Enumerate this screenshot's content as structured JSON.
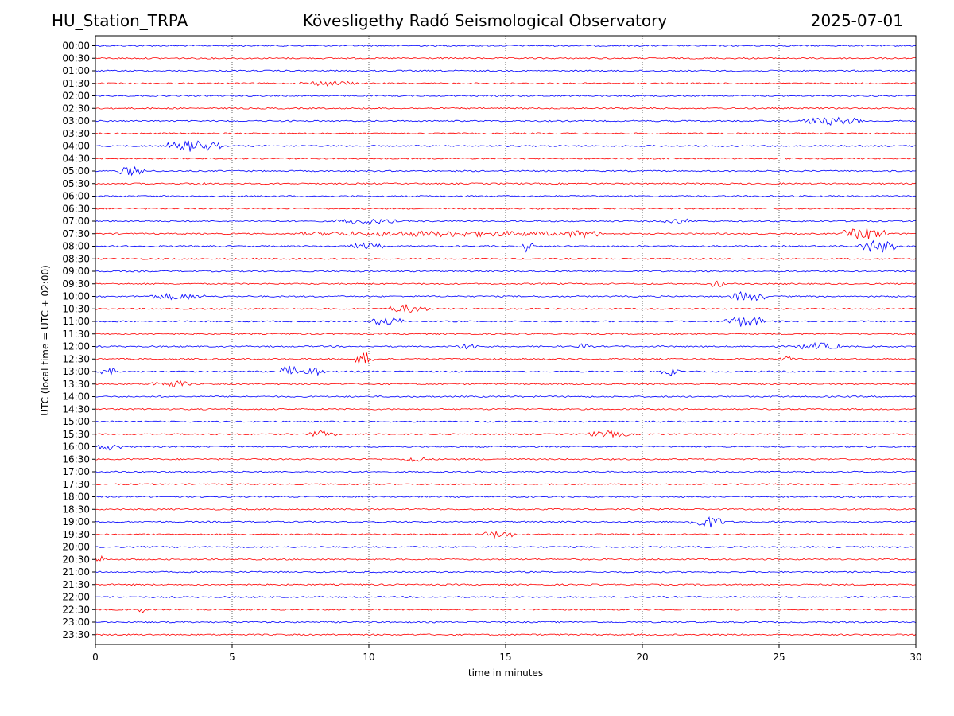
{
  "header": {
    "station": "HU_Station_TRPA",
    "observatory": "Kövesligethy Radó Seismological Observatory",
    "date": "2025-07-01"
  },
  "chart_data": {
    "type": "line",
    "title": "Kövesligethy Radó Seismological Observatory",
    "xlabel": "time in minutes",
    "ylabel": "UTC (local time = UTC + 02:00)",
    "xlim": [
      0,
      30
    ],
    "x_ticks": [
      0,
      5,
      10,
      15,
      20,
      25,
      30
    ],
    "grid": "vertical dotted at x ticks",
    "colors": {
      "even_rows": "#0000ff",
      "odd_rows": "#ff0000"
    },
    "rows": [
      "00:00",
      "00:30",
      "01:00",
      "01:30",
      "02:00",
      "02:30",
      "03:00",
      "03:30",
      "04:00",
      "04:30",
      "05:00",
      "05:30",
      "06:00",
      "06:30",
      "07:00",
      "07:30",
      "08:00",
      "08:30",
      "09:00",
      "09:30",
      "10:00",
      "10:30",
      "11:00",
      "11:30",
      "12:00",
      "12:30",
      "13:00",
      "13:30",
      "14:00",
      "14:30",
      "15:00",
      "15:30",
      "16:00",
      "16:30",
      "17:00",
      "17:30",
      "18:00",
      "18:30",
      "19:00",
      "19:30",
      "20:00",
      "20:30",
      "21:00",
      "21:30",
      "22:00",
      "22:30",
      "23:00",
      "23:30"
    ],
    "events": [
      {
        "row": "01:30",
        "start": 7.5,
        "end": 9.5,
        "level": 0.3
      },
      {
        "row": "03:00",
        "start": 25.7,
        "end": 28.2,
        "level": 0.5
      },
      {
        "row": "04:00",
        "start": 2.6,
        "end": 4.6,
        "level": 0.8
      },
      {
        "row": "05:00",
        "start": 0.8,
        "end": 1.8,
        "level": 0.6
      },
      {
        "row": "05:30",
        "start": 3.6,
        "end": 4.2,
        "level": 0.2
      },
      {
        "row": "07:00",
        "start": 8.8,
        "end": 11.0,
        "level": 0.35
      },
      {
        "row": "07:00",
        "start": 20.8,
        "end": 21.8,
        "level": 0.35
      },
      {
        "row": "07:30",
        "start": 7.5,
        "end": 18.5,
        "level": 0.35
      },
      {
        "row": "07:30",
        "start": 17.0,
        "end": 18.5,
        "level": 0.5
      },
      {
        "row": "07:30",
        "start": 27.3,
        "end": 29.0,
        "level": 0.8
      },
      {
        "row": "08:00",
        "start": 9.3,
        "end": 10.5,
        "level": 0.4
      },
      {
        "row": "08:00",
        "start": 15.6,
        "end": 16.0,
        "level": 0.9
      },
      {
        "row": "08:00",
        "start": 27.9,
        "end": 29.3,
        "level": 0.9
      },
      {
        "row": "09:30",
        "start": 22.5,
        "end": 23.0,
        "level": 0.6
      },
      {
        "row": "10:00",
        "start": 2.0,
        "end": 4.0,
        "level": 0.4
      },
      {
        "row": "10:00",
        "start": 23.2,
        "end": 24.5,
        "level": 0.7
      },
      {
        "row": "10:30",
        "start": 10.6,
        "end": 12.2,
        "level": 0.5
      },
      {
        "row": "11:00",
        "start": 10.0,
        "end": 11.3,
        "level": 0.55
      },
      {
        "row": "11:00",
        "start": 23.0,
        "end": 24.5,
        "level": 0.75
      },
      {
        "row": "12:00",
        "start": 13.2,
        "end": 14.0,
        "level": 0.4
      },
      {
        "row": "12:00",
        "start": 17.6,
        "end": 18.0,
        "level": 0.4
      },
      {
        "row": "12:00",
        "start": 25.6,
        "end": 27.3,
        "level": 0.45
      },
      {
        "row": "12:30",
        "start": 9.5,
        "end": 10.2,
        "level": 0.9
      },
      {
        "row": "12:30",
        "start": 25.0,
        "end": 25.6,
        "level": 0.4
      },
      {
        "row": "13:00",
        "start": 0.2,
        "end": 0.8,
        "level": 0.5
      },
      {
        "row": "13:00",
        "start": 6.8,
        "end": 7.4,
        "level": 0.9
      },
      {
        "row": "13:00",
        "start": 7.6,
        "end": 8.5,
        "level": 0.45
      },
      {
        "row": "13:00",
        "start": 20.7,
        "end": 21.4,
        "level": 0.45
      },
      {
        "row": "13:30",
        "start": 2.0,
        "end": 3.5,
        "level": 0.45
      },
      {
        "row": "15:30",
        "start": 7.8,
        "end": 8.8,
        "level": 0.4
      },
      {
        "row": "15:30",
        "start": 18.0,
        "end": 19.5,
        "level": 0.4
      },
      {
        "row": "16:00",
        "start": 0.0,
        "end": 1.0,
        "level": 0.4
      },
      {
        "row": "16:30",
        "start": 11.3,
        "end": 12.0,
        "level": 0.45
      },
      {
        "row": "19:00",
        "start": 21.7,
        "end": 23.0,
        "level": 0.8
      },
      {
        "row": "19:30",
        "start": 14.1,
        "end": 15.4,
        "level": 0.45
      },
      {
        "row": "20:30",
        "start": 0.0,
        "end": 0.4,
        "level": 0.45
      },
      {
        "row": "22:30",
        "start": 1.6,
        "end": 1.8,
        "level": 0.5
      }
    ]
  }
}
